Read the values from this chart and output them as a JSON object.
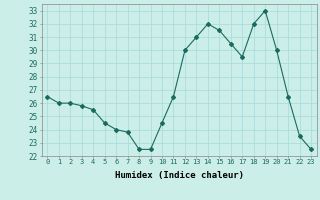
{
  "x": [
    0,
    1,
    2,
    3,
    4,
    5,
    6,
    7,
    8,
    9,
    10,
    11,
    12,
    13,
    14,
    15,
    16,
    17,
    18,
    19,
    20,
    21,
    22,
    23
  ],
  "y": [
    26.5,
    26.0,
    26.0,
    25.8,
    25.5,
    24.5,
    24.0,
    23.8,
    22.5,
    22.5,
    24.5,
    26.5,
    30.0,
    31.0,
    32.0,
    31.5,
    30.5,
    29.5,
    32.0,
    33.0,
    30.0,
    26.5,
    23.5,
    22.5
  ],
  "line_color": "#1a6b5e",
  "marker": "D",
  "marker_size": 2,
  "bg_color": "#cceee8",
  "grid_color": "#aadddd",
  "xlabel": "Humidex (Indice chaleur)",
  "ylim": [
    22,
    33.5
  ],
  "xlim": [
    -0.5,
    23.5
  ],
  "yticks": [
    22,
    23,
    24,
    25,
    26,
    27,
    28,
    29,
    30,
    31,
    32,
    33
  ],
  "xticks": [
    0,
    1,
    2,
    3,
    4,
    5,
    6,
    7,
    8,
    9,
    10,
    11,
    12,
    13,
    14,
    15,
    16,
    17,
    18,
    19,
    20,
    21,
    22,
    23
  ]
}
